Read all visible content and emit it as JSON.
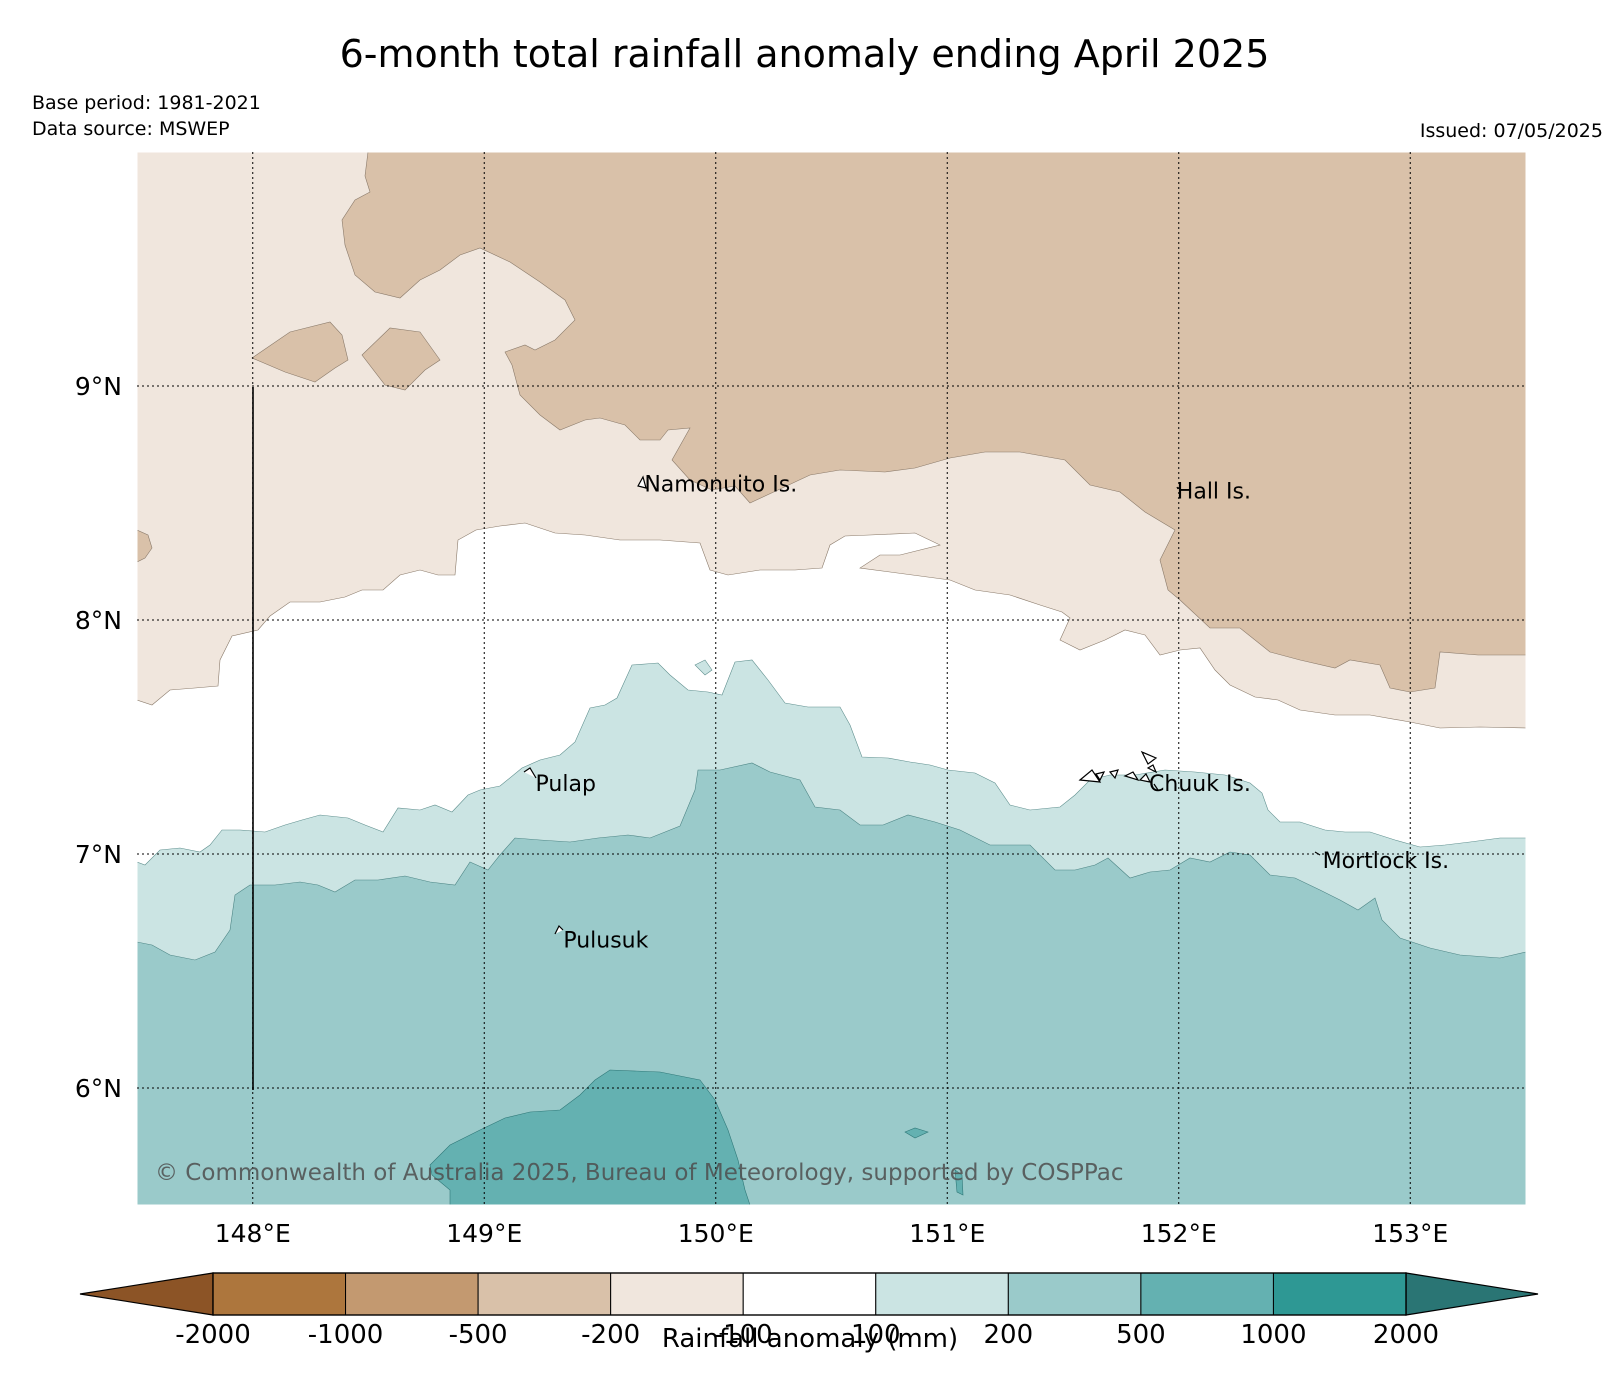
{
  "title": "6-month total rainfall anomaly ending April 2025",
  "base_period": "Base period: 1981-2021",
  "data_source": "Data source: MSWEP",
  "issued": "Issued: 07/05/2025",
  "copyright": "© Commonwealth of Australia 2025, Bureau of Meteorology, supported by COSPPac",
  "map": {
    "lon_range": [
      147.5,
      153.5
    ],
    "lat_range": [
      5.5,
      10.0
    ],
    "lon_ticks": [
      {
        "value": 148,
        "label": "148°E"
      },
      {
        "value": 149,
        "label": "149°E"
      },
      {
        "value": 150,
        "label": "150°E"
      },
      {
        "value": 151,
        "label": "151°E"
      },
      {
        "value": 152,
        "label": "152°E"
      },
      {
        "value": 153,
        "label": "153°E"
      }
    ],
    "lat_ticks": [
      {
        "value": 9,
        "label": "9°N"
      },
      {
        "value": 8,
        "label": "8°N"
      },
      {
        "value": 7,
        "label": "7°N"
      },
      {
        "value": 6,
        "label": "6°N"
      }
    ],
    "grid": true,
    "places": [
      {
        "name": "Namonuito Is.",
        "lon": 149.67,
        "lat": 8.58
      },
      {
        "name": "Hall Is.",
        "lon": 151.97,
        "lat": 8.55
      },
      {
        "name": "Pulap",
        "lon": 149.2,
        "lat": 7.3
      },
      {
        "name": "Chuuk Is.",
        "lon": 151.85,
        "lat": 7.3
      },
      {
        "name": "Mortlock Is.",
        "lon": 152.6,
        "lat": 6.97
      },
      {
        "name": "Pulusuk",
        "lon": 149.32,
        "lat": 6.63
      }
    ]
  },
  "colorbar": {
    "label": "Rainfall anomaly (mm)",
    "ticks": [
      "-2000",
      "-1000",
      "-500",
      "-200",
      "-100",
      "100",
      "200",
      "500",
      "1000",
      "2000"
    ],
    "colors": {
      "below_min": "#8c5426",
      "bin_-2000_-1000": "#ad763d",
      "bin_-1000_-500": "#c39970",
      "bin_-500_-200": "#d9c1a9",
      "bin_-200_-100": "#f0e6dd",
      "bin_-100_100": "#ffffff",
      "bin_100_200": "#cbe4e3",
      "bin_200_500": "#9acaca",
      "bin_500_1000": "#64b1b1",
      "bin_1000_2000": "#2e9894",
      "above_max": "#2a7574"
    }
  }
}
